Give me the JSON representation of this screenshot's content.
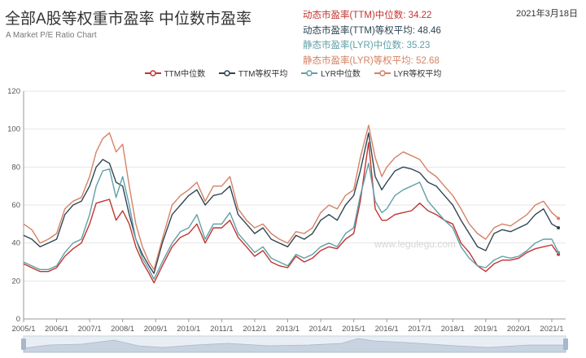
{
  "header": {
    "title": "全部A股等权重市盈率 中位数市盈率",
    "subtitle": "A Market P/E Ratio Chart",
    "date": "2021年3月18日"
  },
  "stats": [
    {
      "label": "动态市盈率(TTM)中位数: 34.22",
      "color": "#c23531"
    },
    {
      "label": "动态市盈率(TTM)等权平均: 48.46",
      "color": "#2f4554"
    },
    {
      "label": "静态市盈率(LYR)中位数: 35.23",
      "color": "#61a0a8"
    },
    {
      "label": "静态市盈率(LYR)等权平均: 52.68",
      "color": "#d48265"
    }
  ],
  "watermark": "www.legulegu.com",
  "chart_data": {
    "type": "line",
    "xlabels": [
      "2005/1",
      "2006/1",
      "2007/1",
      "2008/1",
      "2009/1",
      "2010/1",
      "2011/1",
      "2012/1",
      "2013/1",
      "2014/1",
      "2015/1",
      "2016/1",
      "2017/1",
      "2018/1",
      "2019/1",
      "2020/1",
      "2021/1"
    ],
    "x": [
      2005.0,
      2005.25,
      2005.5,
      2005.75,
      2006.0,
      2006.25,
      2006.5,
      2006.75,
      2007.0,
      2007.2,
      2007.4,
      2007.6,
      2007.8,
      2008.0,
      2008.2,
      2008.4,
      2008.6,
      2008.8,
      2008.95,
      2009.2,
      2009.5,
      2009.75,
      2010.0,
      2010.25,
      2010.5,
      2010.75,
      2011.0,
      2011.25,
      2011.5,
      2011.75,
      2012.0,
      2012.25,
      2012.5,
      2012.75,
      2013.0,
      2013.25,
      2013.5,
      2013.75,
      2014.0,
      2014.25,
      2014.5,
      2014.75,
      2015.0,
      2015.2,
      2015.45,
      2015.65,
      2015.85,
      2016.0,
      2016.25,
      2016.5,
      2016.75,
      2017.0,
      2017.25,
      2017.5,
      2017.75,
      2018.0,
      2018.25,
      2018.5,
      2018.75,
      2019.0,
      2019.25,
      2019.5,
      2019.75,
      2020.0,
      2020.25,
      2020.5,
      2020.75,
      2021.0,
      2021.2
    ],
    "ylim": [
      0,
      120
    ],
    "yticks": [
      0,
      20,
      40,
      60,
      80,
      100,
      120
    ],
    "series": [
      {
        "name": "TTM中位数",
        "color": "#c23531",
        "values": [
          29,
          27,
          25,
          25,
          27,
          33,
          37,
          40,
          50,
          61,
          62,
          63,
          52,
          57,
          50,
          38,
          30,
          24,
          19,
          28,
          38,
          43,
          45,
          50,
          40,
          48,
          48,
          52,
          43,
          38,
          33,
          36,
          30,
          28,
          27,
          33,
          30,
          32,
          36,
          38,
          37,
          42,
          45,
          62,
          93,
          58,
          52,
          52,
          55,
          56,
          57,
          61,
          57,
          55,
          52,
          50,
          40,
          35,
          28,
          25,
          29,
          31,
          31,
          32,
          35,
          37,
          38,
          39,
          34
        ]
      },
      {
        "name": "TTM等权平均",
        "color": "#2f4554",
        "values": [
          44,
          42,
          38,
          40,
          42,
          55,
          60,
          62,
          70,
          80,
          84,
          82,
          72,
          70,
          55,
          42,
          34,
          28,
          24,
          40,
          55,
          60,
          65,
          68,
          60,
          65,
          66,
          70,
          55,
          50,
          45,
          48,
          42,
          40,
          38,
          44,
          42,
          45,
          52,
          55,
          52,
          60,
          65,
          78,
          98,
          75,
          68,
          72,
          78,
          80,
          79,
          77,
          72,
          70,
          65,
          60,
          52,
          45,
          38,
          36,
          45,
          47,
          46,
          48,
          50,
          55,
          58,
          50,
          48
        ]
      },
      {
        "name": "LYR中位数",
        "color": "#61a0a8",
        "values": [
          30,
          28,
          26,
          26,
          28,
          35,
          40,
          42,
          55,
          70,
          78,
          79,
          64,
          75,
          60,
          42,
          32,
          26,
          21,
          30,
          40,
          46,
          48,
          55,
          42,
          50,
          50,
          56,
          45,
          40,
          35,
          38,
          32,
          30,
          28,
          34,
          32,
          34,
          38,
          40,
          38,
          45,
          48,
          65,
          82,
          62,
          56,
          58,
          65,
          68,
          70,
          72,
          62,
          57,
          52,
          48,
          38,
          32,
          28,
          27,
          31,
          33,
          32,
          33,
          36,
          40,
          42,
          42,
          35
        ]
      },
      {
        "name": "LYR等权平均",
        "color": "#d48265",
        "values": [
          50,
          47,
          40,
          42,
          45,
          58,
          62,
          64,
          75,
          88,
          95,
          98,
          88,
          92,
          70,
          50,
          38,
          30,
          26,
          42,
          60,
          65,
          68,
          72,
          62,
          70,
          70,
          75,
          58,
          52,
          48,
          50,
          45,
          42,
          40,
          46,
          45,
          48,
          56,
          60,
          58,
          65,
          68,
          85,
          102,
          85,
          75,
          80,
          85,
          88,
          86,
          84,
          78,
          75,
          70,
          65,
          58,
          50,
          45,
          42,
          48,
          50,
          49,
          52,
          55,
          60,
          62,
          56,
          53
        ]
      }
    ]
  }
}
